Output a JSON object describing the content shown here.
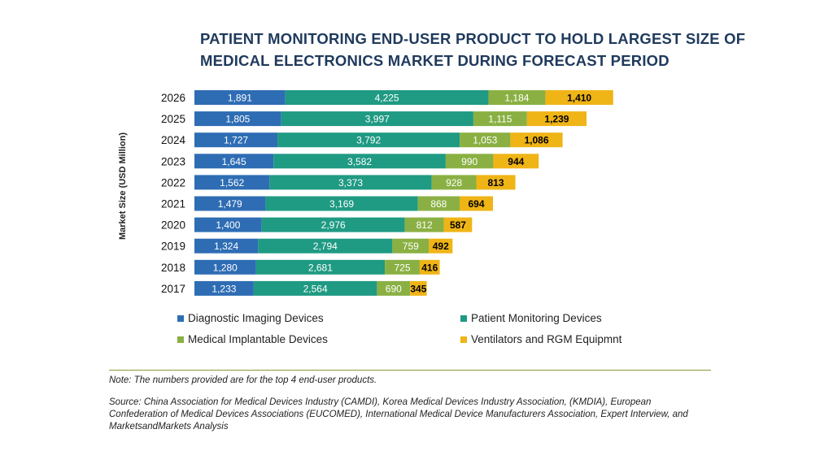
{
  "title_lines": [
    "PATIENT MONITORING END-USER PRODUCT TO HOLD LARGEST SIZE OF",
    "MEDICAL ELECTRONICS MARKET DURING FORECAST PERIOD"
  ],
  "chart_data": {
    "type": "bar",
    "orientation": "horizontal",
    "stacked": true,
    "ylabel": "Market Size (USD Million)",
    "xlabel": "",
    "categories": [
      "2026",
      "2025",
      "2024",
      "2023",
      "2022",
      "2021",
      "2020",
      "2019",
      "2018",
      "2017"
    ],
    "series": [
      {
        "name": "Diagnostic Imaging Devices",
        "color": "#2e6db4",
        "label_color": "#ffffff",
        "values": [
          1891,
          1805,
          1727,
          1645,
          1562,
          1479,
          1400,
          1324,
          1280,
          1233
        ],
        "labels": [
          "1,891",
          "1,805",
          "1,727",
          "1,645",
          "1,562",
          "1,479",
          "1,400",
          "1,324",
          "1,280",
          "1,233"
        ]
      },
      {
        "name": "Patient Monitoring Devices",
        "color": "#1f9a83",
        "label_color": "#ffffff",
        "values": [
          4225,
          3997,
          3792,
          3582,
          3373,
          3169,
          2976,
          2794,
          2681,
          2564
        ],
        "labels": [
          "4,225",
          "3,997",
          "3,792",
          "3,582",
          "3,373",
          "3,169",
          "2,976",
          "2,794",
          "2,681",
          "2,564"
        ]
      },
      {
        "name": "Medical Implantable Devices",
        "color": "#8ab043",
        "label_color": "#ffffff",
        "values": [
          1184,
          1115,
          1053,
          990,
          928,
          868,
          812,
          759,
          725,
          690
        ],
        "labels": [
          "1,184",
          "1,115",
          "1,053",
          "990",
          "928",
          "868",
          "812",
          "759",
          "725",
          "690"
        ]
      },
      {
        "name": "Ventilators and RGM Equipmnt",
        "color": "#efb416",
        "label_color": "#000000",
        "values": [
          1410,
          1239,
          1086,
          944,
          813,
          694,
          587,
          492,
          416,
          345
        ],
        "labels": [
          "1,410",
          "1,239",
          "1,086",
          "944",
          "813",
          "694",
          "587",
          "492",
          "416",
          "345"
        ]
      }
    ],
    "legend_position": "bottom"
  },
  "note": "Note: The numbers provided are for the top 4 end-user products.",
  "source": "Source: China Association for Medical Devices Industry (CAMDI), Korea Medical Devices Industry Association, (KMDIA), European Confederation of Medical Devices Associations (EUCOMED), International Medical Device Manufacturers Association, Expert Interview, and MarketsandMarkets Analysis"
}
